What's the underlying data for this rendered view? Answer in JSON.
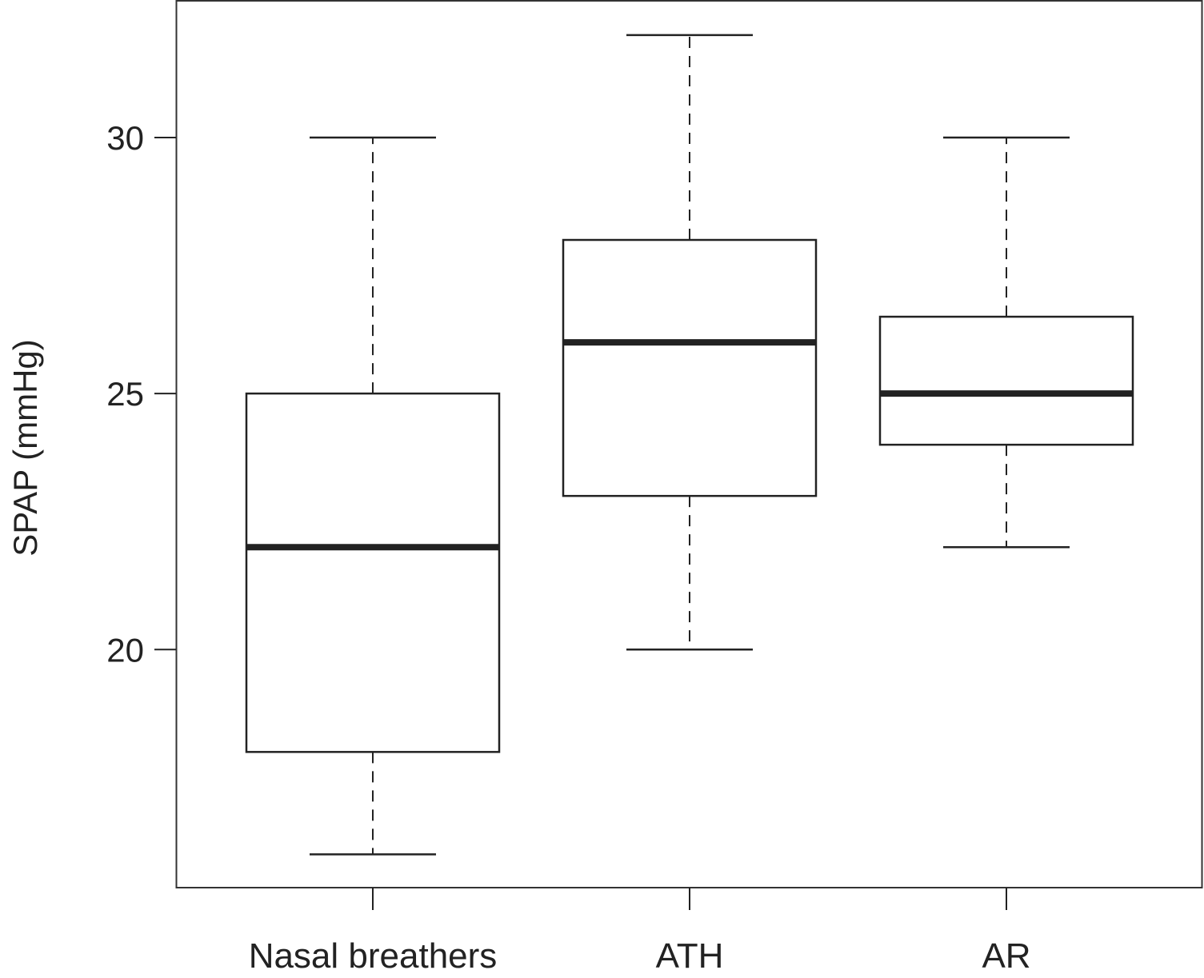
{
  "chart_data": {
    "type": "box",
    "title": "",
    "xlabel": "",
    "ylabel": "SPAP (mmHg)",
    "ylim": [
      15.35,
      32.67
    ],
    "yticks": [
      20,
      25,
      30
    ],
    "ytick_labels": [
      "20",
      "25",
      "30"
    ],
    "grid": false,
    "categories": [
      "Nasal breathers",
      "ATH",
      "AR"
    ],
    "series": [
      {
        "name": "Nasal breathers",
        "whisker_low": 16,
        "q1": 18,
        "median": 22,
        "q3": 25,
        "whisker_high": 30
      },
      {
        "name": "ATH",
        "whisker_low": 20,
        "q1": 23,
        "median": 26,
        "q3": 28,
        "whisker_high": 32
      },
      {
        "name": "AR",
        "whisker_low": 22,
        "q1": 24,
        "median": 25,
        "q3": 26.5,
        "whisker_high": 30
      }
    ],
    "colors": {
      "line": "#222222",
      "box_fill": "#ffffff"
    }
  }
}
